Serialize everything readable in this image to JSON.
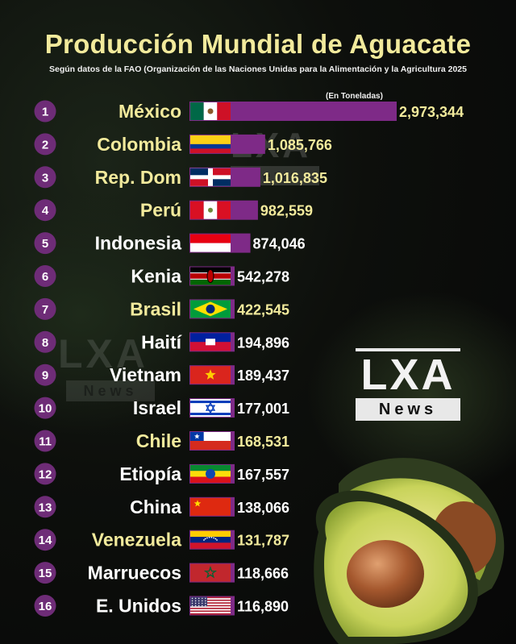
{
  "header": {
    "title": "Producción Mundial de Aguacate",
    "subtitle": "Según datos de la FAO (Organización de las Naciones Unidas para la Alimentación y la Agricultura 2025",
    "unit": "(En Toneladas)"
  },
  "watermark": {
    "brand": "LXA",
    "tag": "News"
  },
  "colors": {
    "bar": "#7e2a87",
    "title": "#f2ea9c",
    "highlight_country": "#f2ea9c",
    "country": "#ffffff",
    "rank_circle": "#6e2c77"
  },
  "chart_data": {
    "type": "bar",
    "orientation": "horizontal",
    "title": "Producción Mundial de Aguacate",
    "subtitle": "Según datos de la FAO (Organización de las Naciones Unidas para la Alimentación y la Agricultura 2025",
    "unit_label": "(En Toneladas)",
    "xlim": [
      0,
      2973344
    ],
    "grid": false,
    "legend": "none",
    "rows": [
      {
        "rank": "1",
        "country": "México",
        "value": 2973344,
        "label": "2,973,344",
        "flag": "mexico-flag",
        "highlight": true
      },
      {
        "rank": "2",
        "country": "Colombia",
        "value": 1085766,
        "label": "1,085,766",
        "flag": "colombia-flag",
        "highlight": true
      },
      {
        "rank": "3",
        "country": "Rep. Dom",
        "value": 1016835,
        "label": "1,016,835",
        "flag": "dominican-republic-flag",
        "highlight": true
      },
      {
        "rank": "4",
        "country": "Perú",
        "value": 982559,
        "label": "982,559",
        "flag": "peru-flag",
        "highlight": true
      },
      {
        "rank": "5",
        "country": "Indonesia",
        "value": 874046,
        "label": "874,046",
        "flag": "indonesia-flag",
        "highlight": false
      },
      {
        "rank": "6",
        "country": "Kenia",
        "value": 542278,
        "label": "542,278",
        "flag": "kenya-flag",
        "highlight": false
      },
      {
        "rank": "7",
        "country": "Brasil",
        "value": 422545,
        "label": "422,545",
        "flag": "brazil-flag",
        "highlight": true
      },
      {
        "rank": "8",
        "country": "Haití",
        "value": 194896,
        "label": "194,896",
        "flag": "haiti-flag",
        "highlight": false
      },
      {
        "rank": "9",
        "country": "Vietnam",
        "value": 189437,
        "label": "189,437",
        "flag": "vietnam-flag",
        "highlight": false
      },
      {
        "rank": "10",
        "country": "Israel",
        "value": 177001,
        "label": "177,001",
        "flag": "israel-flag",
        "highlight": false
      },
      {
        "rank": "11",
        "country": "Chile",
        "value": 168531,
        "label": "168,531",
        "flag": "chile-flag",
        "highlight": true
      },
      {
        "rank": "12",
        "country": "Etiopía",
        "value": 167557,
        "label": "167,557",
        "flag": "ethiopia-flag",
        "highlight": false
      },
      {
        "rank": "13",
        "country": "China",
        "value": 138066,
        "label": "138,066",
        "flag": "china-flag",
        "highlight": false
      },
      {
        "rank": "14",
        "country": "Venezuela",
        "value": 131787,
        "label": "131,787",
        "flag": "venezuela-flag",
        "highlight": true
      },
      {
        "rank": "15",
        "country": "Marruecos",
        "value": 118666,
        "label": "118,666",
        "flag": "morocco-flag",
        "highlight": false
      },
      {
        "rank": "16",
        "country": "E. Unidos",
        "value": 116890,
        "label": "116,890",
        "flag": "usa-flag",
        "highlight": false
      }
    ]
  }
}
